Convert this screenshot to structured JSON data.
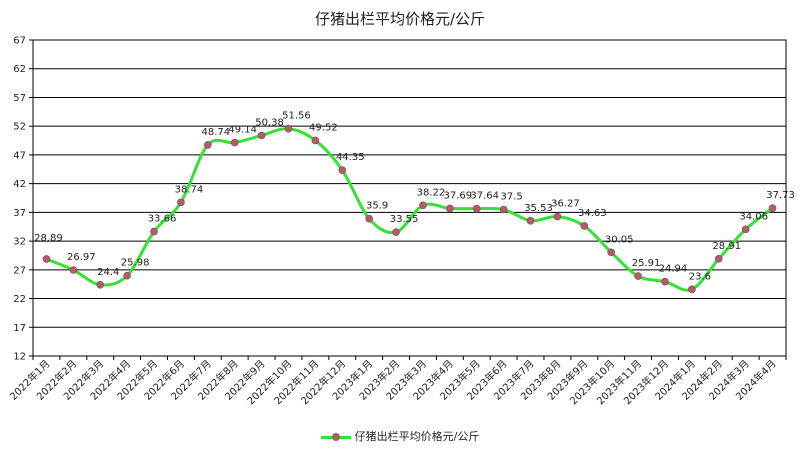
{
  "chart_data": {
    "type": "line",
    "title": "仔猪出栏平均价格元/公斤",
    "categories": [
      "2022年1月",
      "2022年2月",
      "2022年3月",
      "2022年4月",
      "2022年5月",
      "2022年6月",
      "2022年7月",
      "2022年8月",
      "2022年9月",
      "2022年10月",
      "2022年11月",
      "2022年12月",
      "2023年1月",
      "2023年2月",
      "2023年3月",
      "2023年4月",
      "2023年5月",
      "2023年6月",
      "2023年7月",
      "2023年8月",
      "2023年9月",
      "2023年10月",
      "2023年11月",
      "2023年12月",
      "2024年1月",
      "2024年2月",
      "2024年3月",
      "2024年4月"
    ],
    "series": [
      {
        "name": "仔猪出栏平均价格元/公斤",
        "values": [
          28.89,
          26.97,
          24.4,
          25.98,
          33.66,
          38.74,
          48.74,
          49.14,
          50.38,
          51.56,
          49.52,
          44.35,
          35.9,
          33.55,
          38.22,
          37.69,
          37.64,
          37.5,
          35.53,
          36.27,
          34.63,
          30.05,
          25.91,
          24.94,
          23.6,
          28.91,
          34.06,
          37.73
        ],
        "line_color": "#33e333",
        "marker_color": "#b15c6d"
      }
    ],
    "ylim": [
      12,
      67
    ],
    "yticks": [
      12,
      17,
      22,
      27,
      32,
      37,
      42,
      47,
      52,
      57,
      62,
      67
    ],
    "grid": true,
    "legend_position": "bottom"
  }
}
